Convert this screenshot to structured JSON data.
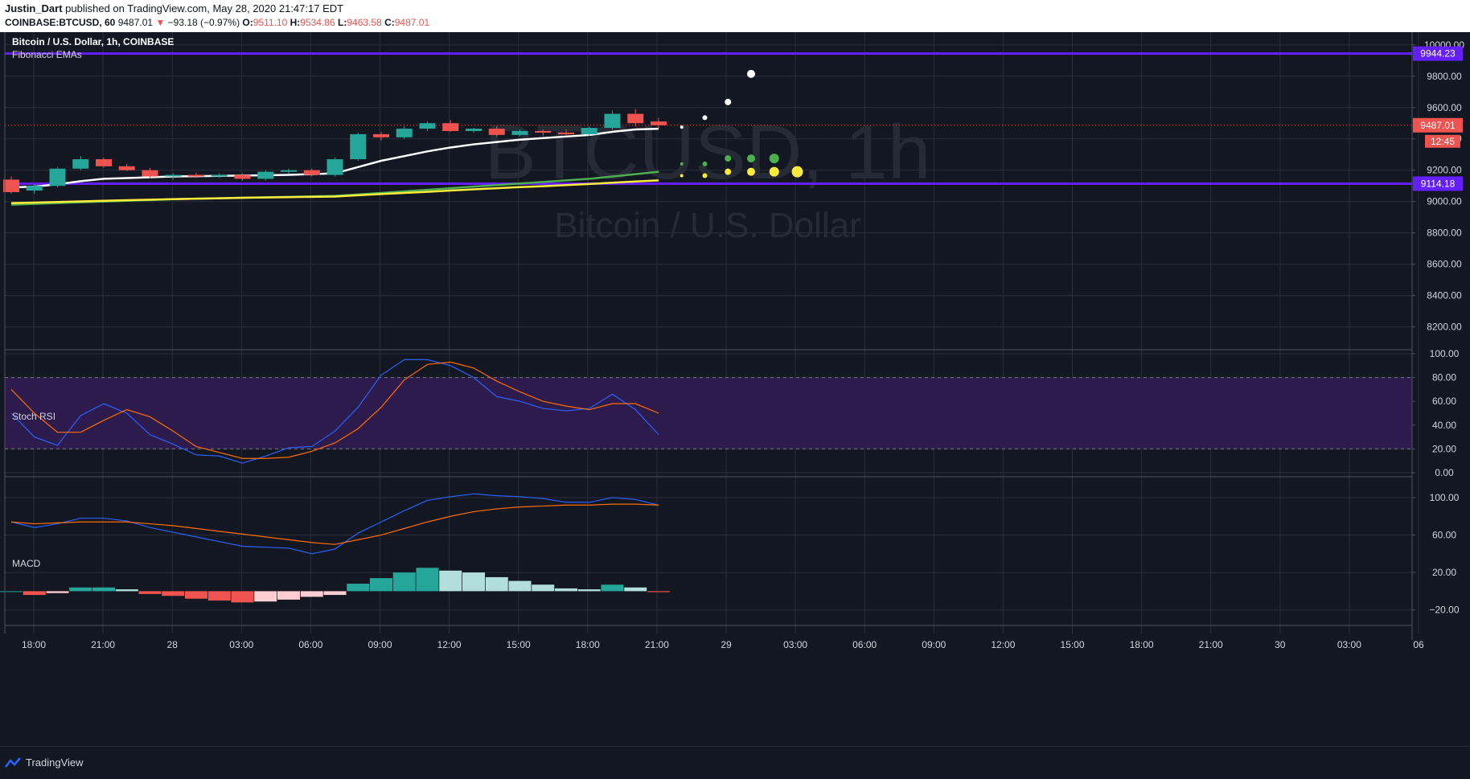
{
  "header": {
    "author": "Justin_Dart",
    "published": "published on TradingView.com, May 28, 2020 21:47:17 EDT",
    "symbol": "COINBASE:BTCUSD, 60",
    "last": "9487.01",
    "change": "−93.18 (−0.97%)",
    "o_label": "O:",
    "o": "9511.10",
    "h_label": "H:",
    "h": "9534.86",
    "l_label": "L:",
    "l": "9463.58",
    "c_label": "C:",
    "c": "9487.01"
  },
  "chart_title": "Bitcoin / U.S. Dollar, 1h, COINBASE",
  "indicator_name": "Fibonacci EMAs",
  "watermark": {
    "symbol": "BTCUSD, 1h",
    "name": "Bitcoin / U.S. Dollar"
  },
  "footer": {
    "brand": "TradingView"
  },
  "colors": {
    "up": "#26a69a",
    "down": "#ef5350",
    "up_light": "#b2dfdb",
    "down_light": "#ffcdd2",
    "level": "#651fff",
    "band": "#2d1b4e"
  },
  "chart_data": [
    {
      "type": "candlestick",
      "title": "Bitcoin / U.S. Dollar, 1h, COINBASE",
      "x_ticks": [
        "18:00",
        "21:00",
        "28",
        "03:00",
        "06:00",
        "09:00",
        "12:00",
        "15:00",
        "18:00",
        "21:00",
        "29",
        "03:00",
        "06:00",
        "09:00",
        "12:00",
        "15:00",
        "18:00",
        "21:00",
        "30",
        "03:00",
        "06"
      ],
      "y_ticks": [
        "10000.00",
        "9800.00",
        "9600.00",
        "9400.00",
        "9200.00",
        "9000.00",
        "8800.00",
        "8600.00",
        "8400.00",
        "8200.00"
      ],
      "ylim": [
        8080,
        10040
      ],
      "candles": [
        {
          "o": 9140,
          "h": 9160,
          "l": 9050,
          "c": 9060
        },
        {
          "o": 9070,
          "h": 9110,
          "l": 9050,
          "c": 9100
        },
        {
          "o": 9100,
          "h": 9220,
          "l": 9090,
          "c": 9210
        },
        {
          "o": 9210,
          "h": 9290,
          "l": 9200,
          "c": 9270
        },
        {
          "o": 9270,
          "h": 9280,
          "l": 9215,
          "c": 9225
        },
        {
          "o": 9225,
          "h": 9240,
          "l": 9195,
          "c": 9200
        },
        {
          "o": 9200,
          "h": 9215,
          "l": 9150,
          "c": 9160
        },
        {
          "o": 9160,
          "h": 9180,
          "l": 9140,
          "c": 9170
        },
        {
          "o": 9170,
          "h": 9185,
          "l": 9150,
          "c": 9160
        },
        {
          "o": 9165,
          "h": 9180,
          "l": 9150,
          "c": 9170
        },
        {
          "o": 9170,
          "h": 9180,
          "l": 9135,
          "c": 9145
        },
        {
          "o": 9145,
          "h": 9200,
          "l": 9135,
          "c": 9190
        },
        {
          "o": 9190,
          "h": 9210,
          "l": 9175,
          "c": 9200
        },
        {
          "o": 9200,
          "h": 9210,
          "l": 9160,
          "c": 9170
        },
        {
          "o": 9170,
          "h": 9280,
          "l": 9160,
          "c": 9270
        },
        {
          "o": 9270,
          "h": 9440,
          "l": 9260,
          "c": 9430
        },
        {
          "o": 9430,
          "h": 9445,
          "l": 9390,
          "c": 9410
        },
        {
          "o": 9410,
          "h": 9480,
          "l": 9400,
          "c": 9465
        },
        {
          "o": 9465,
          "h": 9510,
          "l": 9450,
          "c": 9500
        },
        {
          "o": 9500,
          "h": 9520,
          "l": 9445,
          "c": 9450
        },
        {
          "o": 9450,
          "h": 9470,
          "l": 9440,
          "c": 9465
        },
        {
          "o": 9465,
          "h": 9480,
          "l": 9415,
          "c": 9425
        },
        {
          "o": 9425,
          "h": 9460,
          "l": 9415,
          "c": 9450
        },
        {
          "o": 9450,
          "h": 9460,
          "l": 9420,
          "c": 9440
        },
        {
          "o": 9440,
          "h": 9460,
          "l": 9420,
          "c": 9430
        },
        {
          "o": 9430,
          "h": 9480,
          "l": 9420,
          "c": 9470
        },
        {
          "o": 9470,
          "h": 9580,
          "l": 9460,
          "c": 9560
        },
        {
          "o": 9560,
          "h": 9590,
          "l": 9480,
          "c": 9500
        },
        {
          "o": 9511.1,
          "h": 9534.86,
          "l": 9463.58,
          "c": 9487.01
        }
      ],
      "emas": [
        {
          "color": "#ffffff",
          "values": [
            9090,
            9095,
            9110,
            9130,
            9145,
            9150,
            9155,
            9160,
            9162,
            9164,
            9166,
            9168,
            9170,
            9175,
            9180,
            9220,
            9260,
            9290,
            9320,
            9345,
            9365,
            9380,
            9395,
            9405,
            9415,
            9425,
            9445,
            9460,
            9465
          ]
        },
        {
          "color": "#4caf50",
          "values": [
            8980,
            8985,
            8990,
            8995,
            9000,
            9005,
            9010,
            9015,
            9018,
            9021,
            9024,
            9027,
            9030,
            9033,
            9036,
            9045,
            9055,
            9065,
            9075,
            9085,
            9095,
            9105,
            9115,
            9125,
            9135,
            9145,
            9160,
            9175,
            9190
          ]
        },
        {
          "color": "#ffeb3b",
          "values": [
            8990,
            8993,
            8997,
            9001,
            9005,
            9009,
            9012,
            9015,
            9018,
            9021,
            9024,
            9026,
            9028,
            9030,
            9032,
            9040,
            9048,
            9055,
            9062,
            9070,
            9078,
            9085,
            9092,
            9098,
            9105,
            9112,
            9120,
            9128,
            9135
          ]
        }
      ],
      "levels": [
        {
          "value": 9944.23,
          "label": "9944.23"
        },
        {
          "value": 9114.18,
          "label": "9114.18"
        }
      ],
      "last_price": {
        "value": 9487.01,
        "label": "9487.01",
        "countdown": "12:45"
      },
      "projection_dots": [
        {
          "i": 29,
          "v": 9475,
          "r": 2,
          "color": "#ffffff"
        },
        {
          "i": 30,
          "v": 9535,
          "r": 3,
          "color": "#ffffff"
        },
        {
          "i": 31,
          "v": 9635,
          "r": 4,
          "color": "#ffffff"
        },
        {
          "i": 32,
          "v": 9815,
          "r": 5,
          "color": "#ffffff"
        },
        {
          "i": 29,
          "v": 9240,
          "r": 2,
          "color": "#4caf50"
        },
        {
          "i": 30,
          "v": 9240,
          "r": 3,
          "color": "#4caf50"
        },
        {
          "i": 31,
          "v": 9275,
          "r": 4,
          "color": "#4caf50"
        },
        {
          "i": 32,
          "v": 9275,
          "r": 5,
          "color": "#4caf50"
        },
        {
          "i": 33,
          "v": 9275,
          "r": 6,
          "color": "#4caf50"
        },
        {
          "i": 29,
          "v": 9165,
          "r": 2,
          "color": "#ffeb3b"
        },
        {
          "i": 30,
          "v": 9165,
          "r": 3,
          "color": "#ffeb3b"
        },
        {
          "i": 31,
          "v": 9190,
          "r": 4,
          "color": "#ffeb3b"
        },
        {
          "i": 32,
          "v": 9190,
          "r": 5,
          "color": "#ffeb3b"
        },
        {
          "i": 33,
          "v": 9190,
          "r": 6,
          "color": "#ffeb3b"
        },
        {
          "i": 34,
          "v": 9190,
          "r": 7,
          "color": "#ffeb3b"
        }
      ]
    },
    {
      "type": "line",
      "title": "Stoch RSI",
      "y_ticks": [
        "100.00",
        "80.00",
        "60.00",
        "40.00",
        "20.00",
        "0.00"
      ],
      "ylim": [
        0,
        100
      ],
      "band": [
        20,
        80
      ],
      "series": [
        {
          "color": "#2962ff",
          "values": [
            50,
            30,
            23,
            48,
            58,
            50,
            32,
            24,
            15,
            14,
            8,
            14,
            21,
            22,
            35,
            55,
            82,
            95,
            95,
            90,
            80,
            64,
            60,
            54,
            52,
            54,
            66,
            53,
            32
          ]
        },
        {
          "color": "#ff6d00",
          "values": [
            70,
            50,
            34,
            34,
            44,
            53,
            47,
            35,
            22,
            17,
            12,
            12,
            13,
            18,
            25,
            37,
            55,
            78,
            91,
            93,
            88,
            77,
            68,
            60,
            56,
            53,
            58,
            58,
            50
          ]
        }
      ]
    },
    {
      "type": "line+histogram",
      "title": "MACD",
      "y_ticks": [
        "100.00",
        "60.00",
        "20.00",
        "−20.00"
      ],
      "ylim": [
        -28,
        118
      ],
      "series": [
        {
          "color": "#2962ff",
          "values": [
            74,
            68,
            72,
            78,
            78,
            75,
            68,
            63,
            58,
            53,
            48,
            47,
            46,
            40,
            45,
            62,
            74,
            86,
            97,
            101,
            104,
            102,
            101,
            99,
            95,
            95,
            100,
            98,
            92
          ]
        },
        {
          "color": "#ff6d00",
          "values": [
            74,
            72,
            73,
            74,
            74,
            74,
            72,
            70,
            67,
            64,
            61,
            58,
            55,
            52,
            50,
            55,
            60,
            67,
            74,
            80,
            85,
            88,
            90,
            91,
            92,
            92,
            93,
            93,
            92
          ]
        }
      ],
      "histogram": [
        0,
        -4,
        -2,
        4,
        4,
        2,
        -3,
        -5,
        -8,
        -10,
        -12,
        -11,
        -9,
        -6,
        -4,
        8,
        14,
        20,
        25,
        22,
        20,
        15,
        11,
        7,
        3,
        2,
        7,
        4,
        -1
      ]
    }
  ]
}
